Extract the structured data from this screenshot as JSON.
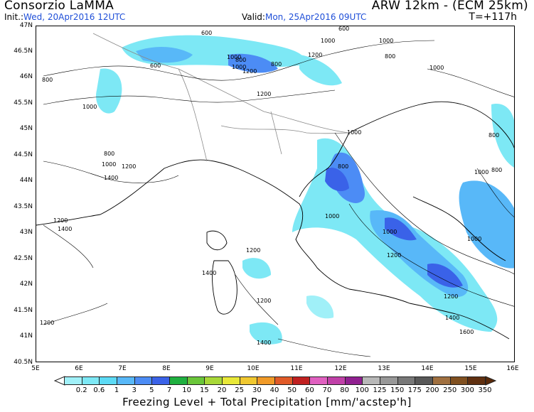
{
  "header": {
    "title_left": "Consorzio LaMMA",
    "title_right": "ARW 12km - (ECM 25km)",
    "init_label": "Init.:",
    "init_value": "Wed, 20Apr2016 12UTC",
    "valid_label": "Valid:",
    "valid_value": "Mon, 25Apr2016 09UTC",
    "forecast_step": "T=+117h"
  },
  "map": {
    "lat_labels": [
      "47N",
      "46.5N",
      "46N",
      "45.5N",
      "45N",
      "44.5N",
      "44N",
      "43.5N",
      "43N",
      "42.5N",
      "42N",
      "41.5N",
      "41N",
      "40.5N"
    ],
    "lon_labels": [
      "5E",
      "6E",
      "7E",
      "8E",
      "9E",
      "10E",
      "11E",
      "12E",
      "13E",
      "14E",
      "15E",
      "16E"
    ],
    "contour_labels": [
      "600",
      "600",
      "800",
      "1000",
      "1000",
      "800",
      "1000",
      "1200",
      "600",
      "800",
      "1000",
      "1200",
      "1000",
      "800",
      "1000",
      "1200",
      "1000",
      "800",
      "1200",
      "1400",
      "800",
      "1000",
      "1400",
      "1000",
      "1200",
      "1200",
      "1400",
      "1400",
      "1000",
      "1200",
      "1400",
      "1200",
      "1200",
      "1600",
      "800",
      "1000",
      "800",
      "1200",
      "1000"
    ]
  },
  "legend": {
    "labels": [
      "0.2",
      "0.6",
      "1",
      "3",
      "5",
      "7",
      "10",
      "15",
      "20",
      "25",
      "30",
      "40",
      "50",
      "60",
      "70",
      "80",
      "100",
      "125",
      "150",
      "175",
      "200",
      "250",
      "300",
      "350"
    ],
    "colors": [
      "#a0f0f8",
      "#7de8f5",
      "#5cdaf5",
      "#58b8f8",
      "#4c8cf5",
      "#3a62e8",
      "#1fb040",
      "#6ac63a",
      "#a8d838",
      "#e8e838",
      "#f0c830",
      "#f09a28",
      "#e05a28",
      "#c02020",
      "#e060c0",
      "#c040a8",
      "#902090",
      "#b8b8b8",
      "#989898",
      "#787878",
      "#585858",
      "#a07040",
      "#805020",
      "#603010"
    ],
    "caption": "Freezing Level + Total Precipitation [mm/'acstep'h]"
  }
}
